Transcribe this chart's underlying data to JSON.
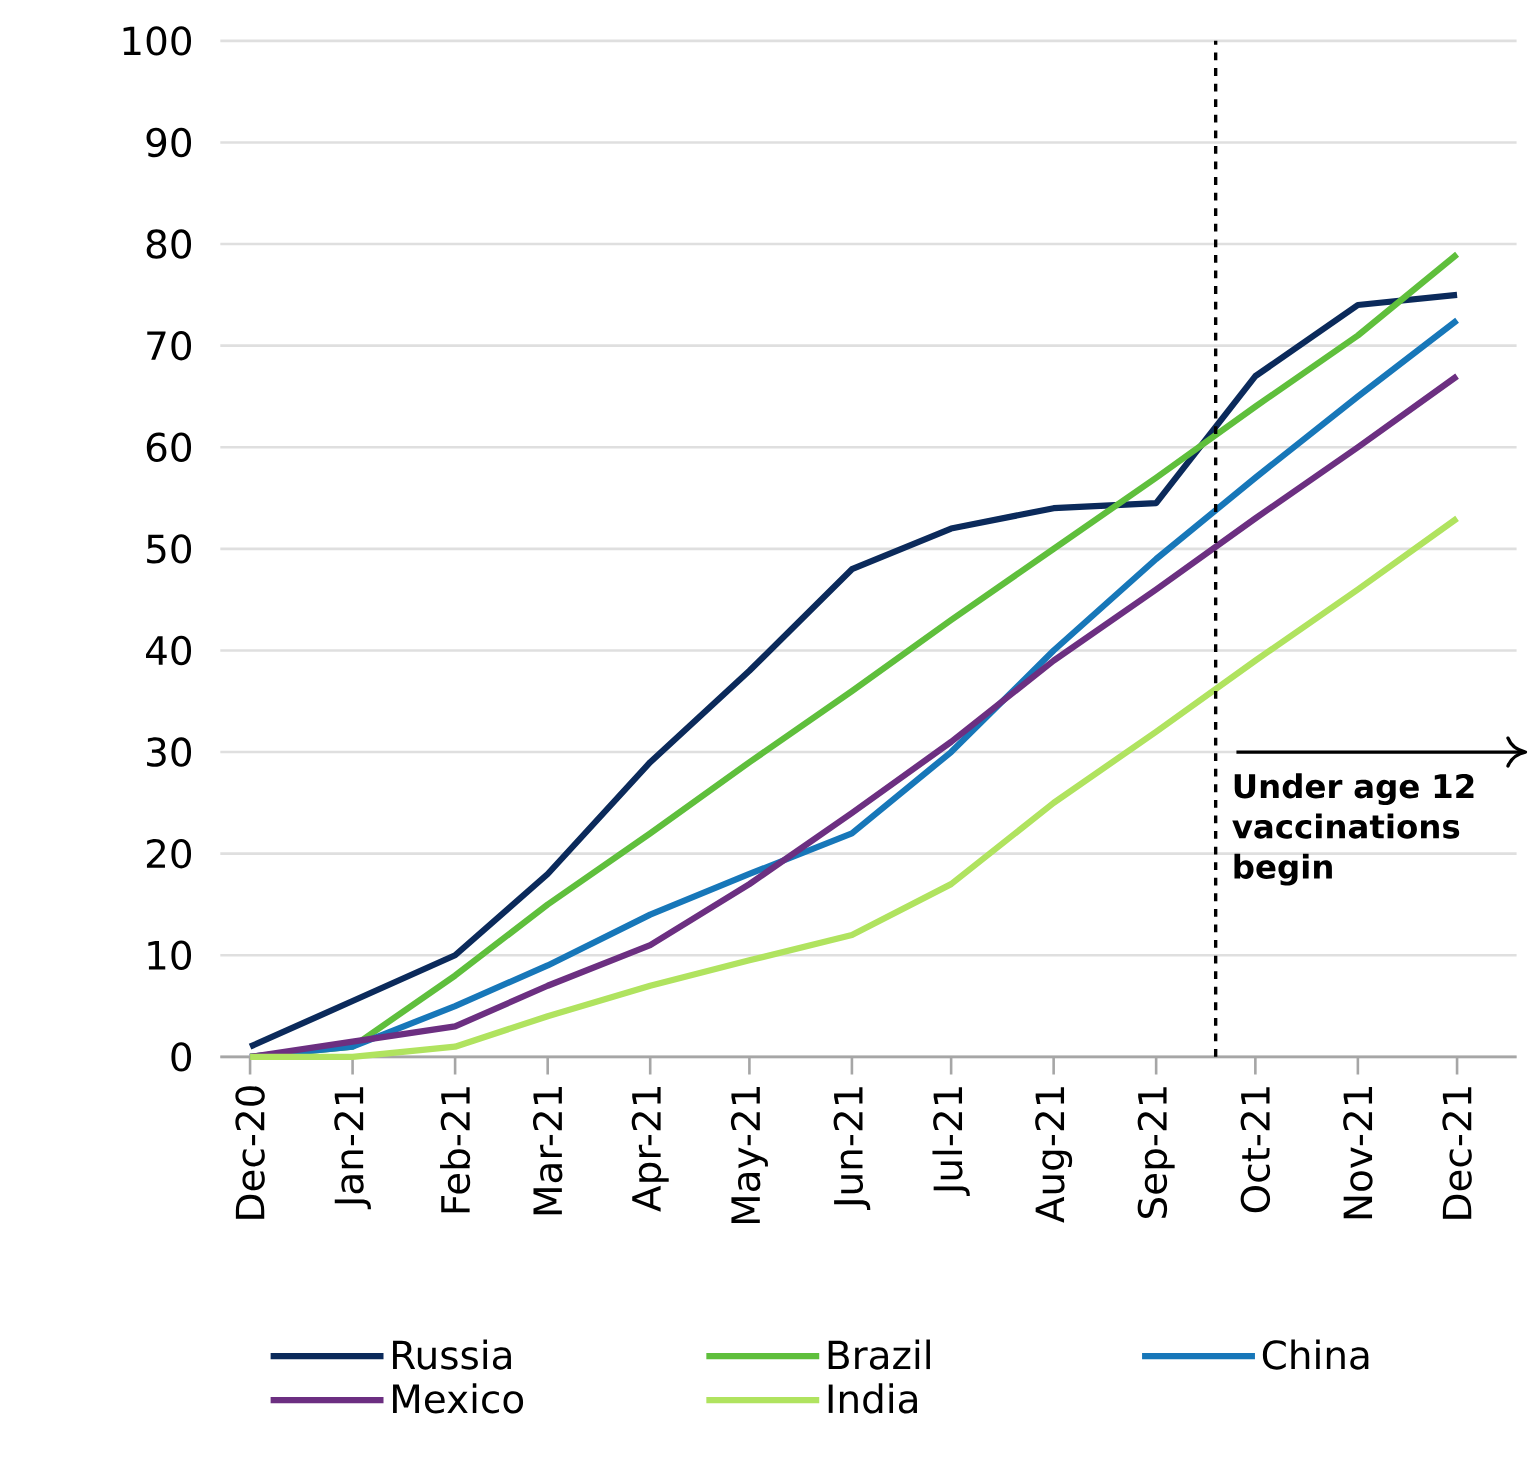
{
  "chart_data": {
    "type": "line",
    "x": [
      "2020-12",
      "2021-01",
      "2021-02",
      "2021-03",
      "2021-04",
      "2021-05",
      "2021-06",
      "2021-07",
      "2021-08",
      "2021-09",
      "2021-10",
      "2021-11",
      "2021-12"
    ],
    "series": [
      {
        "name": "Russia",
        "color": "#0b2a5b",
        "values": [
          1,
          5.5,
          10,
          18,
          29,
          38,
          48,
          52,
          54,
          54.5,
          67,
          74,
          75
        ]
      },
      {
        "name": "Brazil",
        "color": "#5fbf3c",
        "values": [
          0,
          1,
          8,
          15,
          22,
          29,
          36,
          43,
          50,
          57,
          64,
          71,
          79
        ]
      },
      {
        "name": "China",
        "color": "#1777b9",
        "values": [
          0,
          1,
          5,
          9,
          14,
          18,
          22,
          30,
          40,
          49,
          57,
          65,
          72.5
        ]
      },
      {
        "name": "Mexico",
        "color": "#6c2f81",
        "values": [
          0,
          1.5,
          3,
          7,
          11,
          17,
          24,
          31,
          39,
          46,
          53,
          60,
          67
        ]
      },
      {
        "name": "India",
        "color": "#b0e35f",
        "values": [
          0,
          0,
          1,
          4,
          7,
          9.5,
          12,
          17,
          25,
          32,
          39,
          46,
          53
        ]
      }
    ],
    "xlim": [
      "2020-11-22",
      "2021-12-19"
    ],
    "xticks": [
      {
        "value": "2020-12",
        "label": "Dec-20"
      },
      {
        "value": "2021-01",
        "label": "Jan-21"
      },
      {
        "value": "2021-02",
        "label": "Feb-21"
      },
      {
        "value": "2021-03",
        "label": "Mar-21"
      },
      {
        "value": "2021-04",
        "label": "Apr-21"
      },
      {
        "value": "2021-05",
        "label": "May-21"
      },
      {
        "value": "2021-06",
        "label": "Jun-21"
      },
      {
        "value": "2021-07",
        "label": "Jul-21"
      },
      {
        "value": "2021-08",
        "label": "Aug-21"
      },
      {
        "value": "2021-09",
        "label": "Sep-21"
      },
      {
        "value": "2021-10",
        "label": "Oct-21"
      },
      {
        "value": "2021-11",
        "label": "Nov-21"
      },
      {
        "value": "2021-12",
        "label": "Dec-21"
      }
    ],
    "ylim": [
      0,
      100
    ],
    "yticks": [
      0,
      10,
      20,
      30,
      40,
      50,
      60,
      70,
      80,
      90,
      100
    ],
    "grid": "y",
    "legend": "bottom",
    "line_style": "solid",
    "ref_lines": [
      {
        "axis": "x",
        "value": "2021-09-19",
        "label": "Under age 12 vaccinations begin",
        "color": "#000000",
        "line_style": "dashed"
      }
    ]
  }
}
